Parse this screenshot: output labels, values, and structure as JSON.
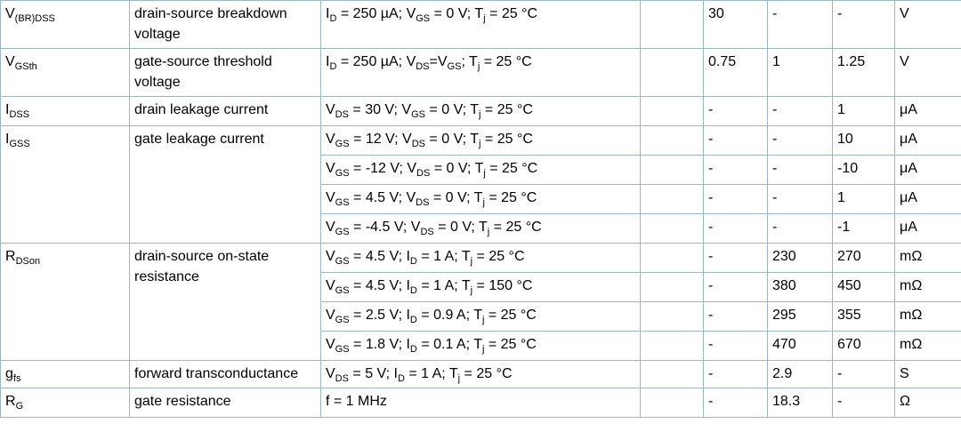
{
  "table": {
    "groups": [
      {
        "symbol": [
          "V",
          "(BR)DSS"
        ],
        "parameter": "drain-source breakdown voltage",
        "rows": [
          {
            "conditions": [
              "I",
              "D",
              " = 250 µA; V",
              "GS",
              " = 0 V; T",
              "j",
              " = 25 °C"
            ],
            "min": "30",
            "typ": "-",
            "max": "-",
            "unit": "V"
          }
        ]
      },
      {
        "symbol": [
          "V",
          "GSth"
        ],
        "parameter": "gate-source threshold voltage",
        "rows": [
          {
            "conditions": [
              "I",
              "D",
              " = 250 µA; V",
              "DS",
              "=V",
              "GS",
              "; T",
              "j",
              " = 25 °C"
            ],
            "min": "0.75",
            "typ": "1",
            "max": "1.25",
            "unit": "V"
          }
        ]
      },
      {
        "symbol": [
          "I",
          "DSS"
        ],
        "parameter": "drain leakage current",
        "rows": [
          {
            "conditions": [
              "V",
              "DS",
              " = 30 V; V",
              "GS",
              " = 0 V; T",
              "j",
              " = 25 °C"
            ],
            "min": "-",
            "typ": "-",
            "max": "1",
            "unit": "μA"
          }
        ]
      },
      {
        "symbol": [
          "I",
          "GSS"
        ],
        "parameter": "gate leakage current",
        "rows": [
          {
            "conditions": [
              "V",
              "GS",
              " = 12 V; V",
              "DS",
              " = 0 V; T",
              "j",
              " = 25 °C"
            ],
            "min": "-",
            "typ": "-",
            "max": "10",
            "unit": "μA"
          },
          {
            "conditions": [
              "V",
              "GS",
              " = -12 V; V",
              "DS",
              " = 0 V; T",
              "j",
              " = 25 °C"
            ],
            "min": "-",
            "typ": "-",
            "max": "-10",
            "unit": "μA"
          },
          {
            "conditions": [
              "V",
              "GS",
              " = 4.5 V; V",
              "DS",
              " = 0 V; T",
              "j",
              " = 25 °C"
            ],
            "min": "-",
            "typ": "-",
            "max": "1",
            "unit": "μA"
          },
          {
            "conditions": [
              "V",
              "GS",
              " = -4.5 V; V",
              "DS",
              " = 0 V; T",
              "j",
              " = 25 °C"
            ],
            "min": "-",
            "typ": "-",
            "max": "-1",
            "unit": "μA"
          }
        ]
      },
      {
        "symbol": [
          "R",
          "DSon"
        ],
        "parameter": "drain-source on-state resistance",
        "rows": [
          {
            "conditions": [
              "V",
              "GS",
              " = 4.5 V; I",
              "D",
              " = 1 A; T",
              "j",
              " = 25 °C"
            ],
            "min": "-",
            "typ": "230",
            "max": "270",
            "unit": "mΩ"
          },
          {
            "conditions": [
              "V",
              "GS",
              " = 4.5 V; I",
              "D",
              " = 1 A; T",
              "j",
              " = 150 °C"
            ],
            "min": "-",
            "typ": "380",
            "max": "450",
            "unit": "mΩ"
          },
          {
            "conditions": [
              "V",
              "GS",
              " = 2.5 V; I",
              "D",
              " = 0.9 A; T",
              "j",
              " = 25 °C"
            ],
            "min": "-",
            "typ": "295",
            "max": "355",
            "unit": "mΩ"
          },
          {
            "conditions": [
              "V",
              "GS",
              " = 1.8 V; I",
              "D",
              " = 0.1 A; T",
              "j",
              " = 25 °C"
            ],
            "min": "-",
            "typ": "470",
            "max": "670",
            "unit": "mΩ"
          }
        ]
      },
      {
        "symbol": [
          "g",
          "fs"
        ],
        "parameter": "forward transconductance",
        "rows": [
          {
            "conditions": [
              "V",
              "DS",
              " = 5 V; I",
              "D",
              " = 1 A; T",
              "j",
              " = 25 °C"
            ],
            "min": "-",
            "typ": "2.9",
            "max": "-",
            "unit": "S"
          }
        ]
      },
      {
        "symbol": [
          "R",
          "G"
        ],
        "parameter": "gate resistance",
        "rows": [
          {
            "conditions": [
              "f = 1 MHz"
            ],
            "min": "-",
            "typ": "18.3",
            "max": "-",
            "unit": "Ω"
          }
        ]
      }
    ]
  }
}
